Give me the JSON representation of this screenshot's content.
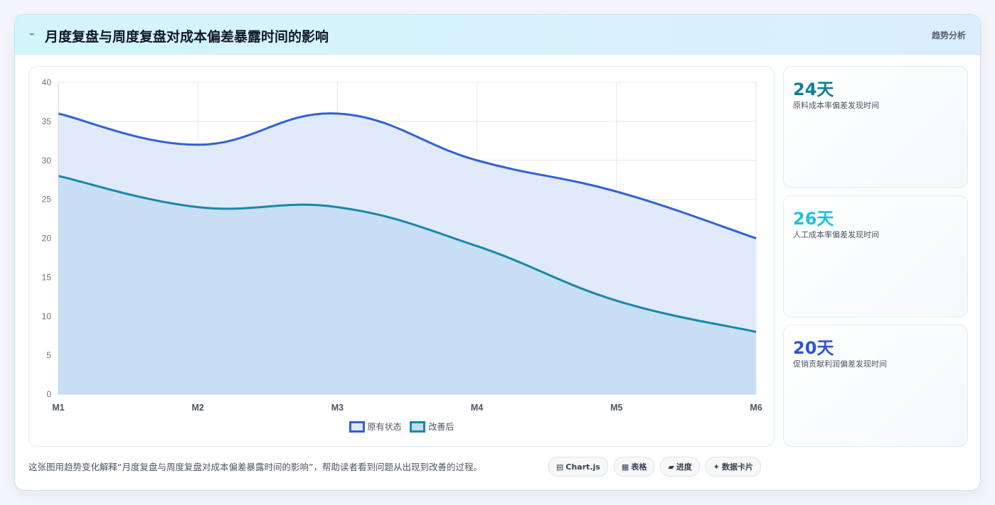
{
  "header": {
    "icon": "chart-line-icon",
    "title": "月度复盘与周度复盘对成本偏差暴露时间的影响",
    "badge": "趋势分析"
  },
  "chart_data": {
    "type": "area",
    "title": "",
    "xlabel": "",
    "ylabel": "",
    "categories": [
      "M1",
      "M2",
      "M3",
      "M4",
      "M5",
      "M6"
    ],
    "ylim": [
      0,
      40
    ],
    "yticks": [
      0,
      5,
      10,
      15,
      20,
      25,
      30,
      35,
      40
    ],
    "grid": true,
    "legend_position": "bottom",
    "series": [
      {
        "name": "原有状态",
        "values": [
          36,
          32,
          36,
          30,
          26,
          20
        ],
        "color": "#2f62d6",
        "fill": "#dfe9fb"
      },
      {
        "name": "改善后",
        "values": [
          28,
          24,
          24,
          19,
          12,
          8
        ],
        "color": "#1688a8",
        "fill": "#c3dcf2"
      }
    ]
  },
  "stats": [
    {
      "value": "24天",
      "label": "原料成本率偏差发现时间",
      "color": "#0e7f99"
    },
    {
      "value": "26天",
      "label": "人工成本率偏差发现时间",
      "color": "#22c1dc"
    },
    {
      "value": "20天",
      "label": "促销贡献利润偏差发现时间",
      "color": "#2a55d3"
    }
  ],
  "footer": {
    "description": "这张图用趋势变化解释“月度复盘与周度复盘对成本偏差暴露时间的影响”，帮助读者看到问题从出现到改善的过程。",
    "chips": [
      {
        "icon": "▤",
        "label": "Chart.js"
      },
      {
        "icon": "▦",
        "label": "表格"
      },
      {
        "icon": "▰",
        "label": "进度"
      },
      {
        "icon": "✦",
        "label": "数据卡片"
      }
    ]
  }
}
